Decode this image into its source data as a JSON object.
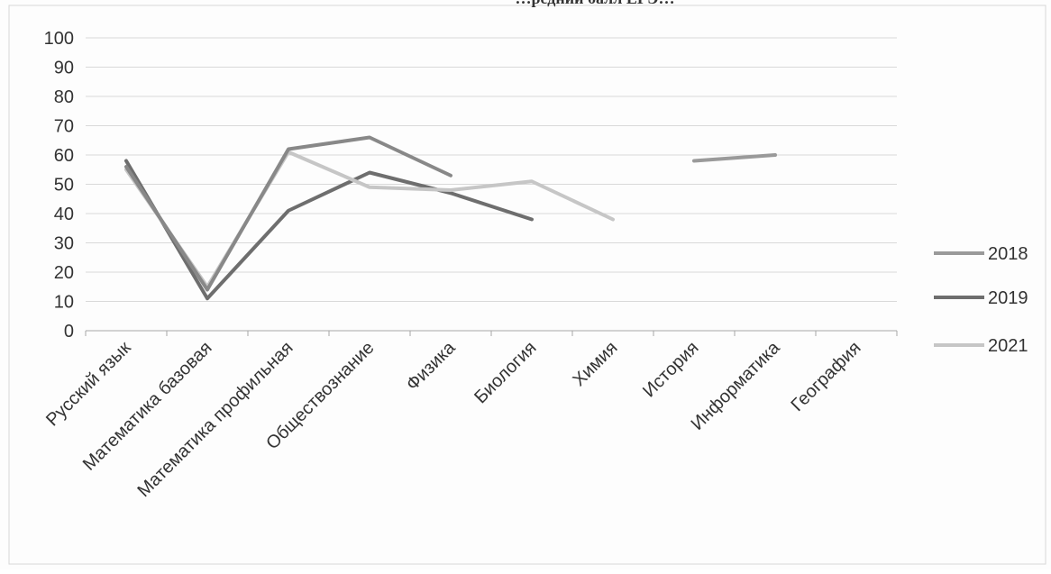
{
  "chart_data": {
    "type": "line",
    "title": "…редний балл ЕГЭ…",
    "categories": [
      "Русский язык",
      "Математика базовая",
      "Математика профильная",
      "Обществознание",
      "Физика",
      "Биология",
      "Химия",
      "История",
      "Информатика",
      "География"
    ],
    "y_ticks": [
      "0",
      "10",
      "20",
      "30",
      "40",
      "50",
      "60",
      "70",
      "80",
      "90",
      "100"
    ],
    "ylim": [
      0,
      100
    ],
    "grid": true,
    "legend_position": "right",
    "series": [
      {
        "name": "2018",
        "color": "#9a9a9a",
        "values": [
          null,
          null,
          null,
          null,
          null,
          null,
          null,
          58,
          60,
          null
        ]
      },
      {
        "name": "2019",
        "color": "#6e6e6e",
        "values": [
          58,
          11,
          41,
          54,
          47,
          38,
          null,
          null,
          null,
          null
        ]
      },
      {
        "name": "2021",
        "color": "#c6c6c6",
        "values": [
          55,
          15,
          61,
          49,
          48,
          51,
          38,
          null,
          null,
          null
        ]
      },
      {
        "name": "",
        "color": "#888888",
        "values": [
          56,
          14,
          62,
          66,
          53,
          null,
          null,
          null,
          null,
          null
        ]
      }
    ]
  }
}
